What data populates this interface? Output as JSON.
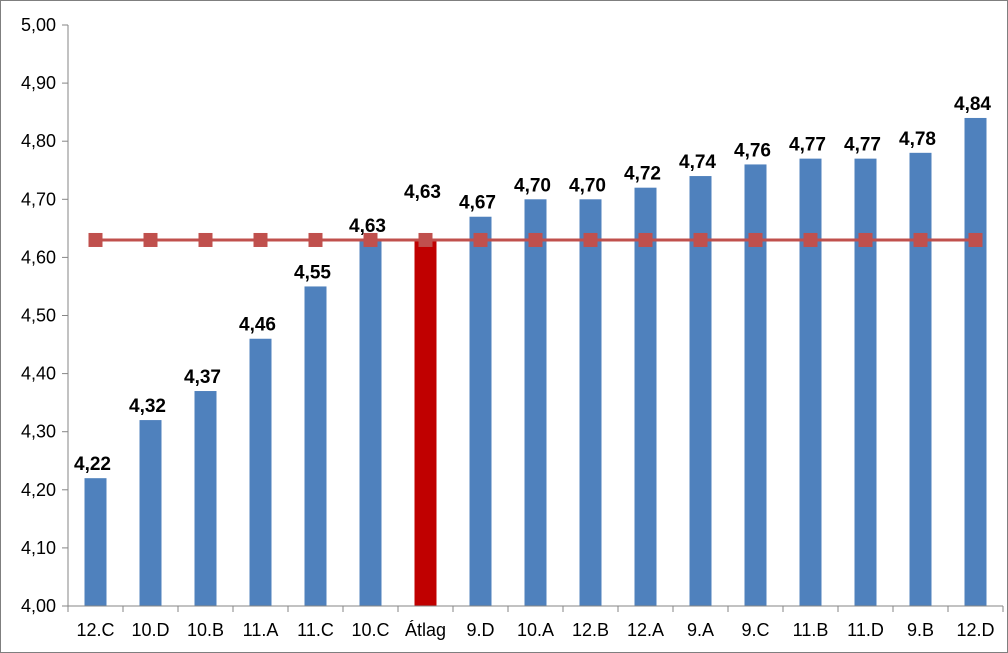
{
  "chart_data": {
    "type": "bar",
    "categories": [
      "12.C",
      "10.D",
      "10.B",
      "11.A",
      "11.C",
      "10.C",
      "Átlag",
      "9.D",
      "10.A",
      "12.B",
      "12.A",
      "9.A",
      "9.C",
      "11.B",
      "11.D",
      "9.B",
      "12.D"
    ],
    "values": [
      4.22,
      4.32,
      4.37,
      4.46,
      4.55,
      4.63,
      4.63,
      4.67,
      4.7,
      4.7,
      4.72,
      4.74,
      4.76,
      4.77,
      4.77,
      4.78,
      4.84
    ],
    "data_labels": [
      "4,22",
      "4,32",
      "4,37",
      "4,46",
      "4,55",
      "4,63",
      "4,63",
      "4,67",
      "4,70",
      "4,70",
      "4,72",
      "4,74",
      "4,76",
      "4,77",
      "4,77",
      "4,78",
      "4,84"
    ],
    "highlight_category": "Átlag",
    "average_line": {
      "value": 4.63
    },
    "ylim": [
      4.0,
      5.0
    ],
    "y_ticks": [
      "4,00",
      "4,10",
      "4,20",
      "4,30",
      "4,40",
      "4,50",
      "4,60",
      "4,70",
      "4,80",
      "4,90",
      "5,00"
    ],
    "y_tick_values": [
      4.0,
      4.1,
      4.2,
      4.3,
      4.4,
      4.5,
      4.6,
      4.7,
      4.8,
      4.9,
      5.0
    ],
    "grid": false,
    "title": "",
    "xlabel": "",
    "ylabel": "",
    "colors": {
      "bar": "#4f81bd",
      "highlight_bar": "#c00000",
      "line": "#c0504d",
      "marker": "#c0504d",
      "axis": "#868686"
    }
  }
}
